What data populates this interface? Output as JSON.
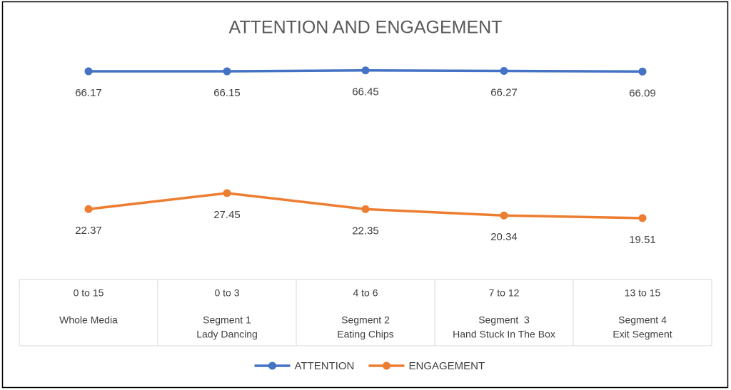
{
  "chart_data": {
    "type": "line",
    "title": "ATTENTION AND ENGAGEMENT",
    "categories": [
      [
        "0 to 15",
        "Whole Media"
      ],
      [
        "0 to 3",
        "Segment 1",
        "Lady Dancing"
      ],
      [
        "4 to 6",
        "Segment 2",
        "Eating Chips"
      ],
      [
        "7 to 12",
        "Segment  3",
        "Hand Stuck In The Box"
      ],
      [
        "13 to 15",
        "Segment 4",
        "Exit Segment"
      ]
    ],
    "series": [
      {
        "name": "ATTENTION",
        "color": "#4472c4",
        "values": [
          66.17,
          66.15,
          66.45,
          66.27,
          66.09
        ]
      },
      {
        "name": "ENGAGEMENT",
        "color": "#ed7d31",
        "values": [
          22.37,
          27.45,
          22.35,
          20.34,
          19.51
        ]
      }
    ],
    "ylim": [
      0,
      75
    ],
    "legend": "bottom"
  }
}
